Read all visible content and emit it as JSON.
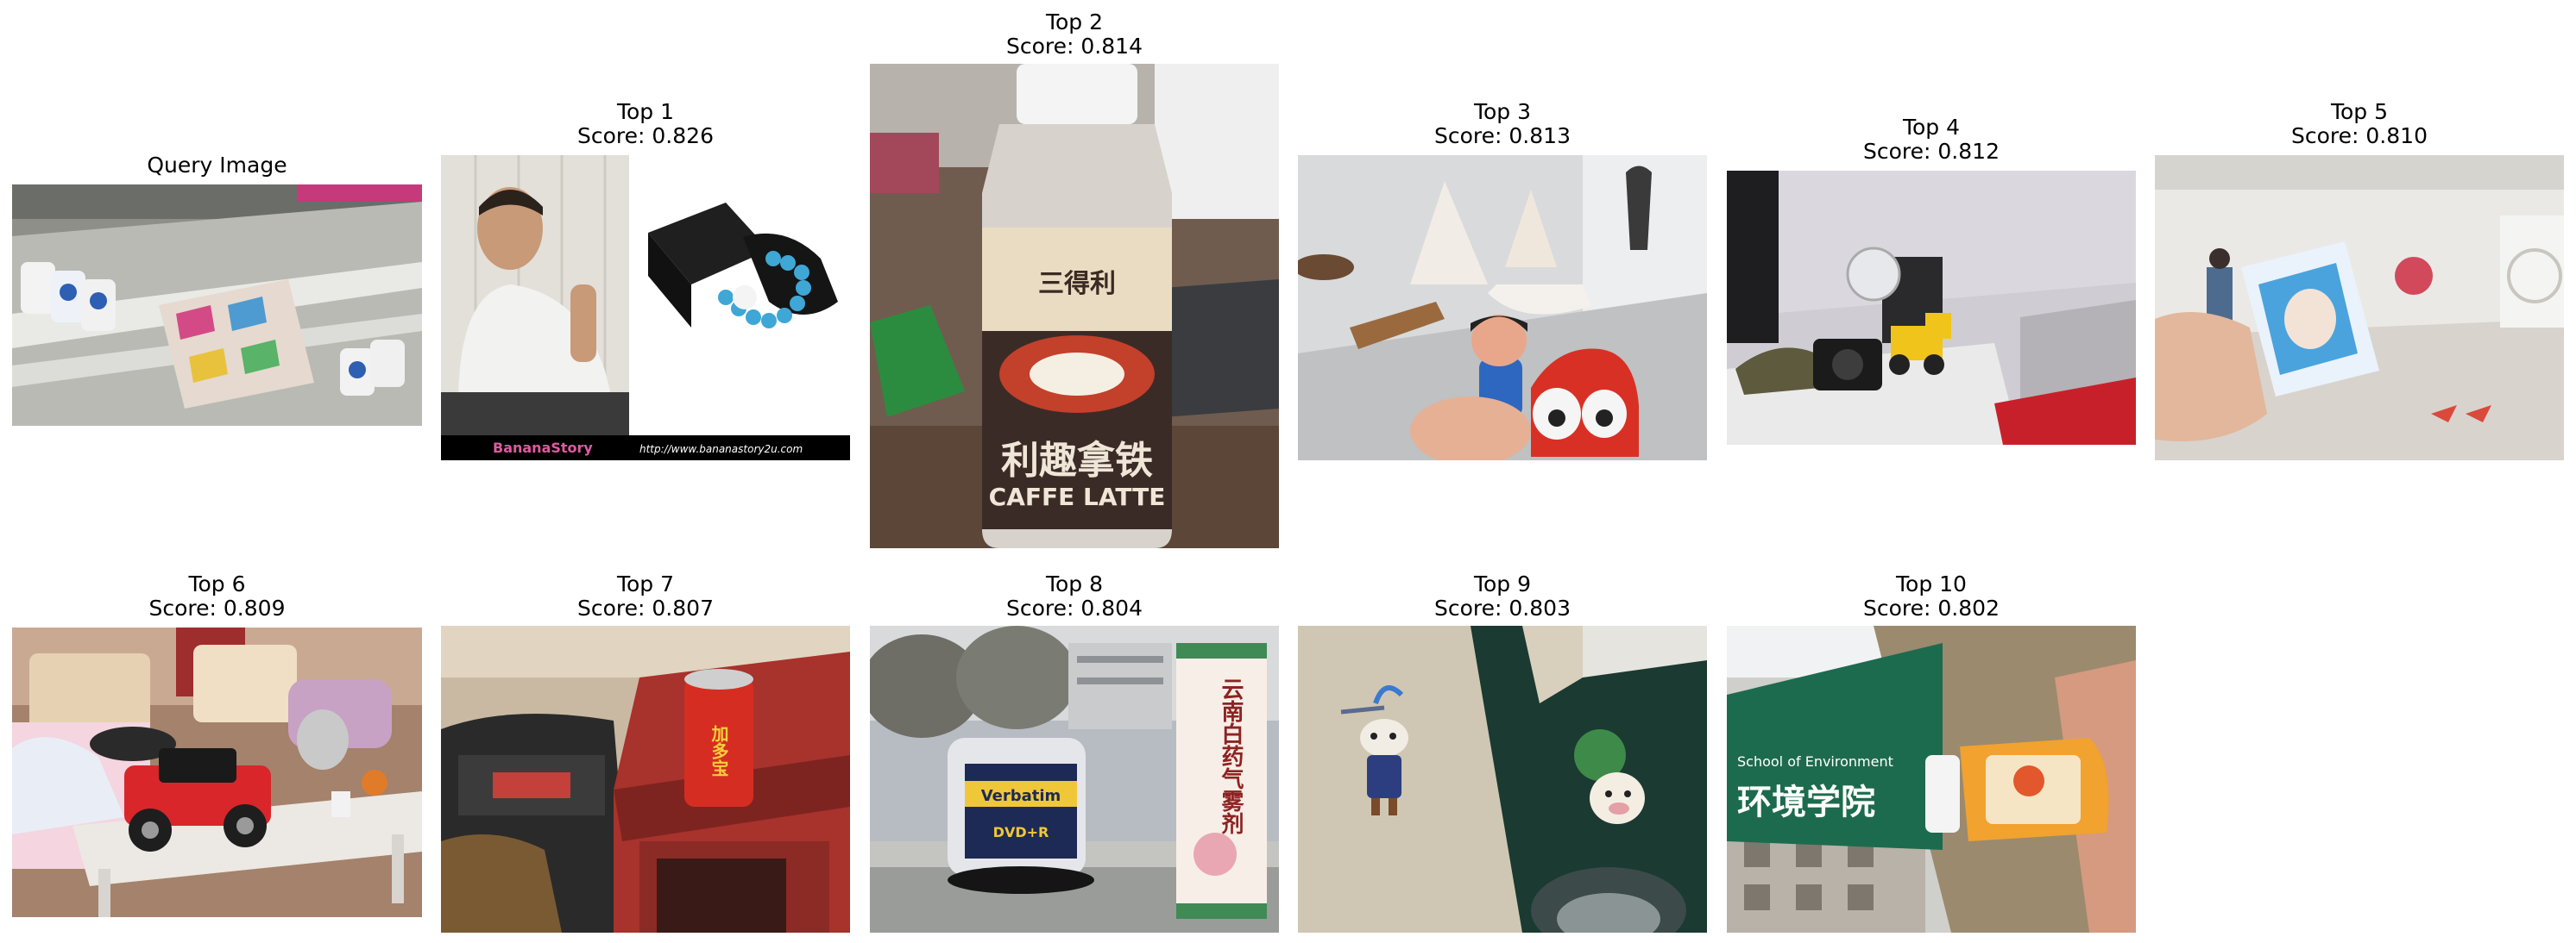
{
  "panels": [
    {
      "title": "Query Image",
      "score": "",
      "image": "Photo of a kitchen shelf rack with white bottles and a colorful patterned box"
    },
    {
      "title": "Top 1",
      "score": "Score: 0.826",
      "image": "Product photo of a man with a bead bracelet and gift box",
      "banner_brand": "BananaStory",
      "banner_url": "http://www.bananastory2u.com"
    },
    {
      "title": "Top 2",
      "score": "Score: 0.814",
      "image": "Bottle of caffe latte on a desk",
      "label_top": "三得利",
      "label_main": "利趣拿铁",
      "label_sub": "CAFFE LATTE"
    },
    {
      "title": "Top 3",
      "score": "Score: 0.813",
      "image": "Hand holding a toy figure next to a red toy car and paper boat"
    },
    {
      "title": "Top 4",
      "score": "Score: 0.812",
      "image": "Camera and yellow toy truck on a table in an office"
    },
    {
      "title": "Top 5",
      "score": "Score: 0.810",
      "image": "Hand holding a snack package in an exhibition hall"
    },
    {
      "title": "Top 6",
      "score": "Score: 0.809",
      "image": "Red toy jeep on a table in a living room"
    },
    {
      "title": "Top 7",
      "score": "Score: 0.807",
      "image": "Red drink can on a wooden stool next to a bag",
      "can_text": "加多宝"
    },
    {
      "title": "Top 8",
      "score": "Score: 0.804",
      "image": "Verbatim DVD spindle and medicine box outdoors",
      "spindle_text": "Verbatim",
      "dvd_text": "DVD+R",
      "box_text": "云南白药气雾剂"
    },
    {
      "title": "Top 9",
      "score": "Score: 0.803",
      "image": "Small cow keychain figures on a cardboard box"
    },
    {
      "title": "Top 10",
      "score": "Score: 0.802",
      "image": "Honey bottle in front of a School of Environment sign",
      "sign_en": "School of Environment",
      "sign_cn": "环境学院"
    }
  ],
  "colors": {
    "background": "#ffffff",
    "text": "#000000"
  }
}
